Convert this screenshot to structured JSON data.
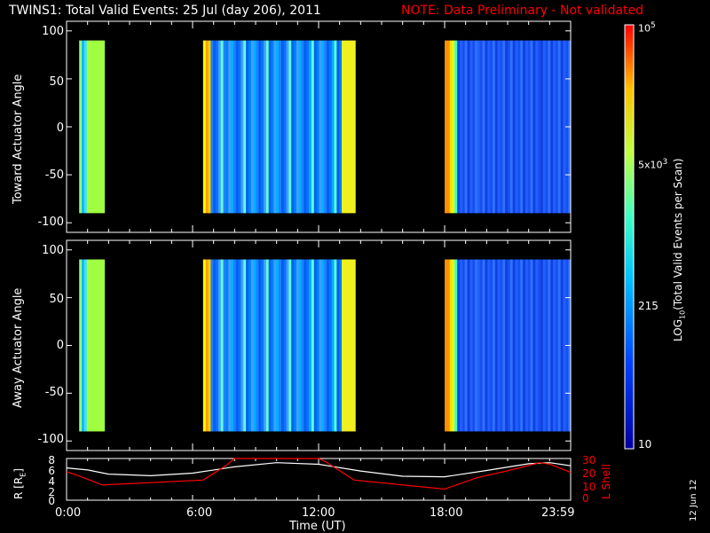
{
  "header": {
    "title": "TWINS1: Total Valid Events: 25 Jul (day 206), 2011",
    "note": "NOTE: Data Preliminary - Not validated",
    "note_color": "#ff0000"
  },
  "date_stamp": "12 Jun 12",
  "chart_data": [
    {
      "type": "heatmap",
      "ylabel": "Toward Actuator Angle",
      "ylim": [
        -110,
        110
      ],
      "xlim_hours": [
        0,
        24
      ],
      "y_ticks": [
        "100",
        "50",
        "0",
        "-50",
        "-100"
      ],
      "angle_range": [
        -90,
        90
      ],
      "data_intervals_hours": [
        [
          0.6,
          1.8
        ],
        [
          6.5,
          13.7
        ],
        [
          18.0,
          24.0
        ]
      ],
      "grid": "off"
    },
    {
      "type": "heatmap",
      "ylabel": "Away Actuator Angle",
      "ylim": [
        -110,
        110
      ],
      "xlim_hours": [
        0,
        24
      ],
      "y_ticks": [
        "100",
        "50",
        "0",
        "-50",
        "-100"
      ],
      "angle_range": [
        -90,
        90
      ],
      "data_intervals_hours": [
        [
          0.6,
          1.8
        ],
        [
          6.5,
          13.7
        ],
        [
          18.0,
          24.0
        ]
      ],
      "grid": "off"
    },
    {
      "type": "line",
      "ylabel_left": "R [R",
      "ylabel_left_sub": "E",
      "ylabel_left_close": "]",
      "ylabel_right": "L Shell",
      "y_ticks_left": [
        "8",
        "6",
        "4",
        "2",
        "0"
      ],
      "y_ticks_right": [
        "30",
        "20",
        "10",
        "0"
      ],
      "ylim_left": [
        0,
        8
      ],
      "ylim_right": [
        0,
        30
      ],
      "xlabel": "Time (UT)",
      "x_ticks": [
        "0:00",
        "6:00",
        "12:00",
        "18:00",
        "23:59"
      ],
      "series": [
        {
          "color": "#ffffff",
          "axis": "left",
          "x": [
            0,
            1,
            2,
            4,
            6,
            8,
            10,
            12,
            14,
            16,
            18,
            20,
            22,
            23,
            24
          ],
          "y": [
            6.2,
            5.8,
            5.0,
            4.7,
            5.2,
            6.4,
            7.2,
            6.9,
            5.6,
            4.6,
            4.5,
            5.7,
            7.0,
            7.2,
            6.6
          ]
        },
        {
          "color": "#ff0000",
          "axis": "right",
          "x": [
            0,
            0.5,
            1.7,
            6.5,
            7.6,
            8.0,
            12.0,
            12.3,
            13.7,
            18.0,
            19.5,
            21.5,
            22.5,
            23.0,
            24.0
          ],
          "y": [
            20.5,
            18,
            11,
            14.5,
            25,
            31,
            31,
            28,
            14.5,
            8,
            16,
            23,
            27,
            26,
            20
          ]
        }
      ]
    }
  ],
  "colorbar": {
    "label_prefix": "LOG",
    "label_sub": "10",
    "label_rest": "(Total Valid Events per Scan)",
    "ticks": [
      {
        "base": "10",
        "sup": "5"
      },
      {
        "base": "5x10",
        "sup": "3"
      },
      {
        "base": "215",
        "sup": ""
      },
      {
        "base": "10",
        "sup": ""
      }
    ]
  }
}
